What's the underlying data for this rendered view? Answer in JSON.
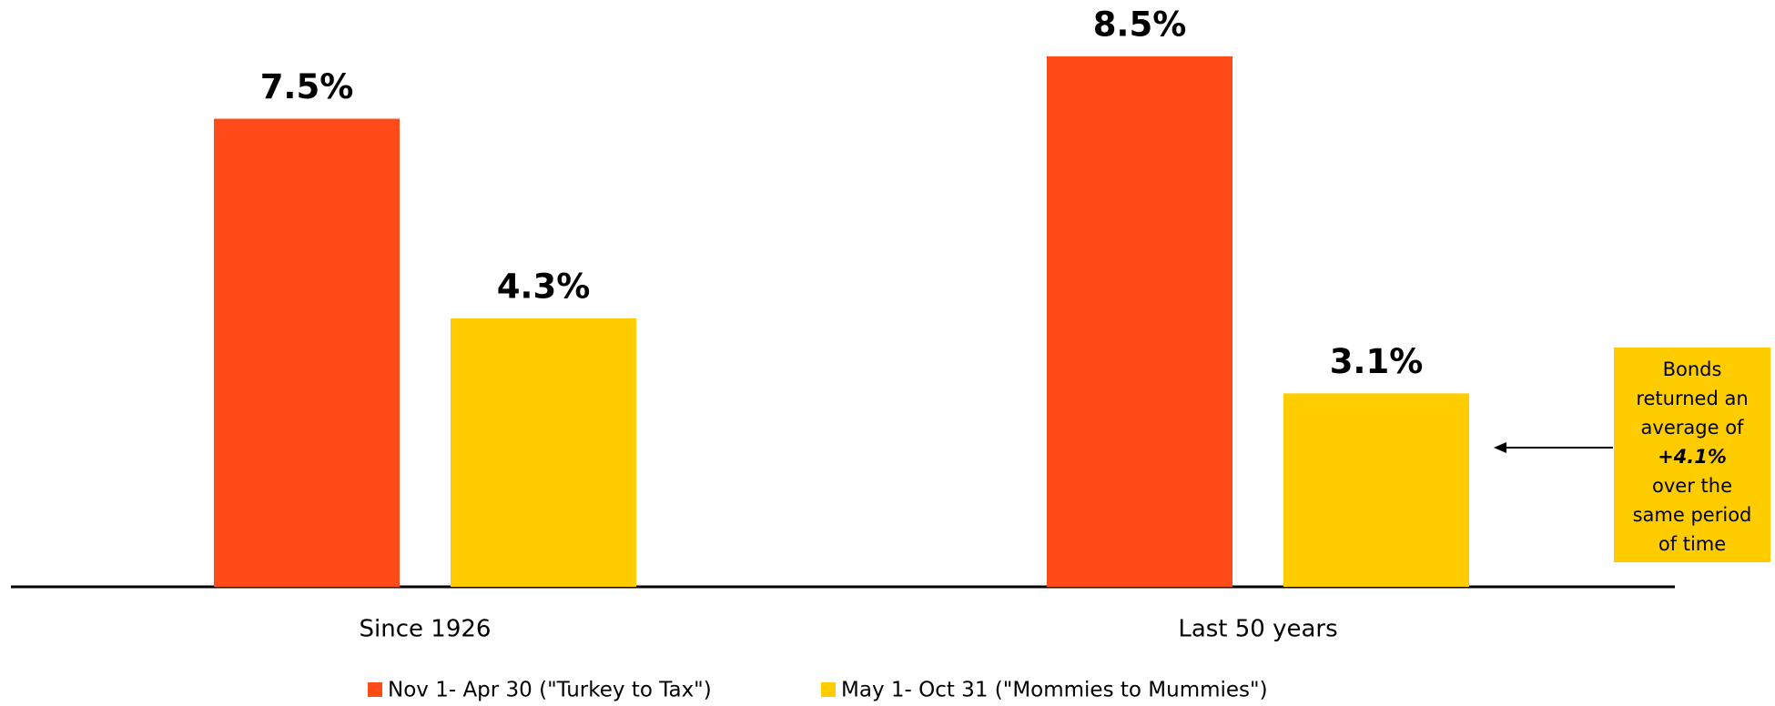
{
  "chart_data": {
    "type": "bar",
    "categories": [
      "Since 1926",
      "Last 50 years"
    ],
    "series": [
      {
        "name": "Nov 1- Apr 30 (\"Turkey to Tax\")",
        "color": "#FF4B17",
        "values": [
          7.5,
          8.5
        ],
        "value_labels": [
          "7.5%",
          "8.5%"
        ]
      },
      {
        "name": "May 1- Oct 31 (\"Mommies to Mummies\")",
        "color": "#FFCC00",
        "values": [
          4.3,
          3.1
        ],
        "value_labels": [
          "4.3%",
          "3.1%"
        ]
      }
    ],
    "annotation": {
      "lead": [
        "Bonds",
        "returned an",
        "average of"
      ],
      "highlight": "+4.1%",
      "tail": [
        "over the",
        "same period",
        "of time"
      ],
      "color": "#FFCC00"
    }
  }
}
